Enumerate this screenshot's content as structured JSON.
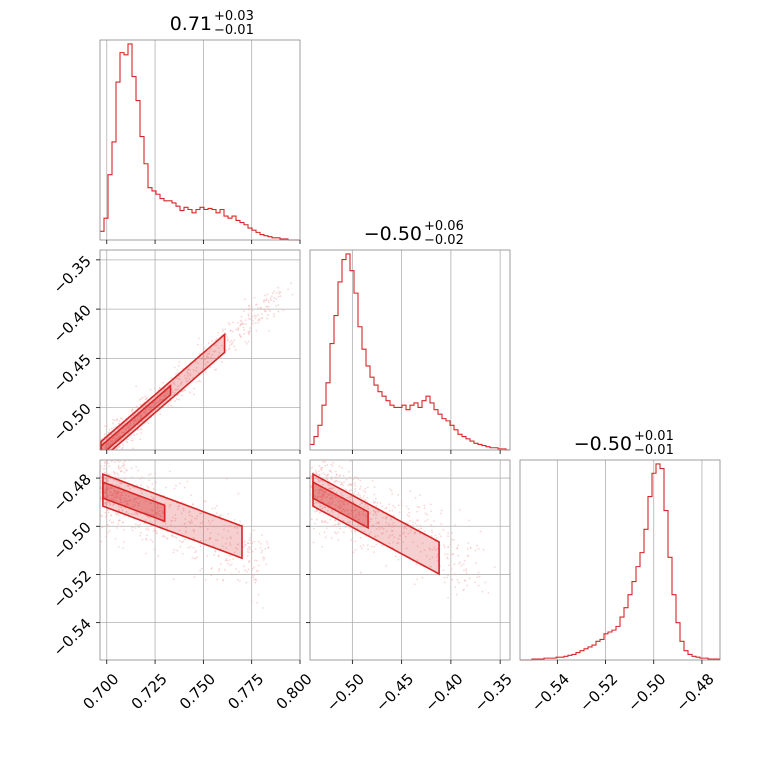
{
  "chart_data": {
    "type": "corner",
    "color": "#d62728",
    "parameters": [
      {
        "title": {
          "median": "0.71",
          "plus": "+0.03",
          "minus": "−0.01"
        },
        "range": [
          0.6965,
          0.8
        ],
        "ticks": [
          0.7,
          0.725,
          0.75,
          0.775,
          0.8
        ],
        "tick_labels": [
          "0.700",
          "0.725",
          "0.750",
          "0.775",
          "0.800"
        ]
      },
      {
        "title": {
          "median": "−0.50",
          "plus": "+0.06",
          "minus": "−0.02"
        },
        "range": [
          -0.543,
          -0.34
        ],
        "ticks": [
          -0.5,
          -0.45,
          -0.4,
          -0.35
        ],
        "tick_labels": [
          "−0.50",
          "−0.45",
          "−0.40",
          "−0.35"
        ],
        "y_ticks": [
          -0.35,
          -0.4,
          -0.45,
          -0.5
        ],
        "y_tick_labels": [
          "−0.35",
          "−0.40",
          "−0.45",
          "−0.50"
        ]
      },
      {
        "title": {
          "median": "−0.50",
          "plus": "+0.01",
          "minus": "−0.01"
        },
        "range": [
          -0.5555,
          -0.4725
        ],
        "ticks": [
          -0.54,
          -0.52,
          -0.5,
          -0.48
        ],
        "tick_labels": [
          "−0.54",
          "−0.52",
          "−0.50",
          "−0.48"
        ],
        "y_ticks": [
          -0.48,
          -0.5,
          -0.52,
          -0.54
        ],
        "y_tick_labels": [
          "−0.48",
          "−0.50",
          "−0.52",
          "−0.54"
        ]
      }
    ],
    "histograms": [
      {
        "param": 0,
        "counts": [
          8,
          20,
          60,
          90,
          145,
          172,
          170,
          180,
          150,
          128,
          95,
          70,
          48,
          45,
          42,
          38,
          36,
          36,
          34,
          31,
          27,
          30,
          28,
          25,
          28,
          30,
          28,
          29,
          28,
          25,
          28,
          22,
          20,
          22,
          18,
          16,
          14,
          11,
          9,
          7,
          5,
          4,
          3,
          2,
          2,
          1,
          1,
          0,
          0,
          0
        ]
      },
      {
        "param": 1,
        "counts": [
          5,
          12,
          22,
          40,
          60,
          95,
          120,
          150,
          170,
          175,
          160,
          140,
          110,
          90,
          75,
          65,
          58,
          52,
          48,
          44,
          40,
          38,
          38,
          40,
          36,
          40,
          42,
          38,
          44,
          48,
          42,
          36,
          32,
          28,
          26,
          22,
          18,
          14,
          12,
          10,
          8,
          6,
          5,
          4,
          3,
          2,
          2,
          1,
          1,
          0
        ]
      },
      {
        "param": 2,
        "counts": [
          0,
          0,
          0,
          1,
          1,
          1,
          2,
          2,
          2,
          3,
          3,
          4,
          5,
          6,
          8,
          10,
          12,
          14,
          16,
          20,
          22,
          28,
          30,
          32,
          36,
          46,
          56,
          70,
          84,
          100,
          115,
          140,
          175,
          200,
          210,
          205,
          160,
          110,
          70,
          40,
          20,
          10,
          6,
          4,
          3,
          2,
          2,
          1,
          1,
          1
        ]
      }
    ],
    "scatter_pairs": [
      {
        "x_param": 0,
        "y_param": 1,
        "relation": "positive linear, y ≈ -0.53 + 1.7 (x - 0.705)"
      },
      {
        "x_param": 0,
        "y_param": 2
      },
      {
        "x_param": 1,
        "y_param": 2
      }
    ]
  }
}
